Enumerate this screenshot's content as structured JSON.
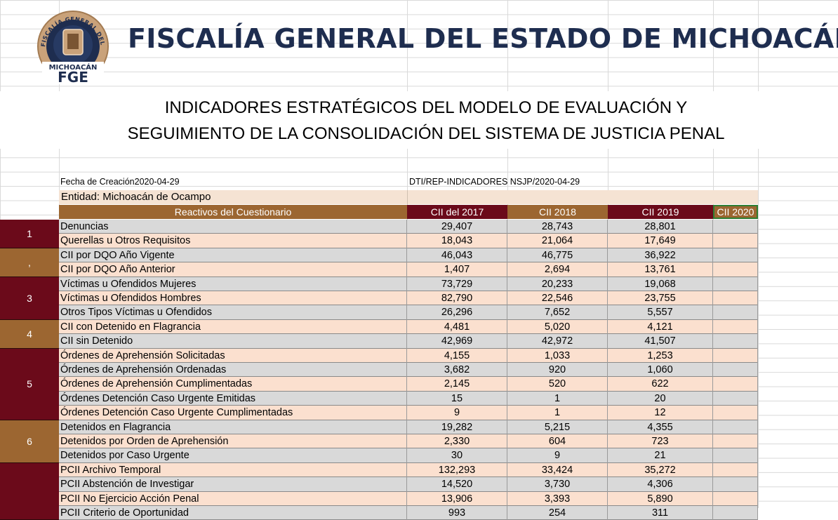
{
  "header": {
    "org_title": "FISCALÍA GENERAL DEL ESTADO DE MICHOACÁN",
    "logo_ring_text": "FISCALÍA GENERAL DEL ESTADO",
    "logo_bottom_text": "MICHOACÁN",
    "logo_abbr": "FGE"
  },
  "subtitle": {
    "line1": "INDICADORES ESTRATÉGICOS DEL MODELO DE EVALUACIÓN Y",
    "line2": "SEGUIMIENTO DE LA CONSOLIDACIÓN DEL SISTEMA DE JUSTICIA PENAL"
  },
  "meta": {
    "fecha": "Fecha de Creación2020-04-29",
    "ref": "DTI/REP-INDICADORES NSJP/2020-04-29"
  },
  "entidad": "Entidad: Michoacán de Ocampo",
  "table": {
    "headers": [
      "Reactivos del Cuestionario",
      "CII del 2017",
      "CII 2018",
      "CII 2019",
      "CII 2020"
    ],
    "groups": [
      {
        "label": "1",
        "color": "#6b0a1a",
        "rows": 2
      },
      {
        "label": ",",
        "color": "#9c6631",
        "rows": 2
      },
      {
        "label": "3",
        "color": "#6b0a1a",
        "rows": 3
      },
      {
        "label": "4",
        "color": "#9c6631",
        "rows": 2
      },
      {
        "label": "5",
        "color": "#6b0a1a",
        "rows": 5
      },
      {
        "label": "6",
        "color": "#9c6631",
        "rows": 3
      },
      {
        "label": "",
        "color": "#6b0a1a",
        "rows": 4
      }
    ],
    "rows": [
      {
        "label": "Denuncias",
        "v2017": "29,407",
        "v2018": "28,743",
        "v2019": "28,801",
        "v2020": ""
      },
      {
        "label": "Querellas u Otros Requisitos",
        "v2017": "18,043",
        "v2018": "21,064",
        "v2019": "17,649",
        "v2020": ""
      },
      {
        "label": "CII por DQO Año Vigente",
        "v2017": "46,043",
        "v2018": "46,775",
        "v2019": "36,922",
        "v2020": ""
      },
      {
        "label": "CII por DQO Año Anterior",
        "v2017": "1,407",
        "v2018": "2,694",
        "v2019": "13,761",
        "v2020": ""
      },
      {
        "label": "Víctimas u Ofendidos Mujeres",
        "v2017": "73,729",
        "v2018": "20,233",
        "v2019": "19,068",
        "v2020": ""
      },
      {
        "label": "Víctimas u Ofendidos Hombres",
        "v2017": "82,790",
        "v2018": "22,546",
        "v2019": "23,755",
        "v2020": ""
      },
      {
        "label": "Otros Tipos Víctimas u Ofendidos",
        "v2017": "26,296",
        "v2018": "7,652",
        "v2019": "5,557",
        "v2020": ""
      },
      {
        "label": "CII con Detenido en Flagrancia",
        "v2017": "4,481",
        "v2018": "5,020",
        "v2019": "4,121",
        "v2020": ""
      },
      {
        "label": "CII sin Detenido",
        "v2017": "42,969",
        "v2018": "42,972",
        "v2019": "41,507",
        "v2020": ""
      },
      {
        "label": "Órdenes de Aprehensión Solicitadas",
        "v2017": "4,155",
        "v2018": "1,033",
        "v2019": "1,253",
        "v2020": ""
      },
      {
        "label": "Órdenes de Aprehensión Ordenadas",
        "v2017": "3,682",
        "v2018": "920",
        "v2019": "1,060",
        "v2020": ""
      },
      {
        "label": "Órdenes de Aprehensión Cumplimentadas",
        "v2017": "2,145",
        "v2018": "520",
        "v2019": "622",
        "v2020": ""
      },
      {
        "label": "Órdenes Detención Caso Urgente Emitidas",
        "v2017": "15",
        "v2018": "1",
        "v2019": "20",
        "v2020": ""
      },
      {
        "label": "Órdenes Detención Caso Urgente Cumplimentadas",
        "v2017": "9",
        "v2018": "1",
        "v2019": "12",
        "v2020": ""
      },
      {
        "label": "Detenidos en Flagrancia",
        "v2017": "19,282",
        "v2018": "5,215",
        "v2019": "4,355",
        "v2020": ""
      },
      {
        "label": "Detenidos por Orden de Aprehensión",
        "v2017": "2,330",
        "v2018": "604",
        "v2019": "723",
        "v2020": ""
      },
      {
        "label": "Detenidos por Caso Urgente",
        "v2017": "30",
        "v2018": "9",
        "v2019": "21",
        "v2020": ""
      },
      {
        "label": "PCII Archivo Temporal",
        "v2017": "132,293",
        "v2018": "33,424",
        "v2019": "35,272",
        "v2020": ""
      },
      {
        "label": "PCII Abstención de Investigar",
        "v2017": "14,520",
        "v2018": "3,730",
        "v2019": "4,306",
        "v2020": ""
      },
      {
        "label": "PCII No Ejercicio Acción Penal",
        "v2017": "13,906",
        "v2018": "3,393",
        "v2019": "5,890",
        "v2020": ""
      },
      {
        "label": "PCII Criterio de Oportunidad",
        "v2017": "993",
        "v2018": "254",
        "v2019": "311",
        "v2020": ""
      }
    ]
  },
  "colors": {
    "title_navy": "#1e2d4f",
    "maroon": "#6b0a1a",
    "brown": "#9c6631",
    "row_gray": "#d9d9d9",
    "row_peach": "#fbe0cf",
    "entidad_bg": "#f5e3d3",
    "selection_green": "#2e7d32"
  }
}
